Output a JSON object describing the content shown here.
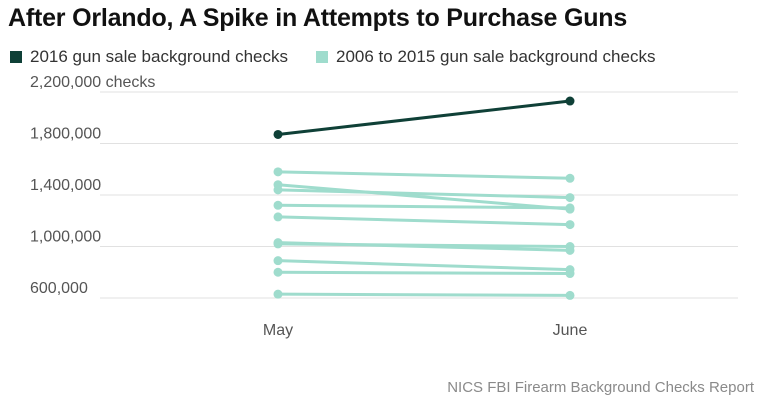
{
  "title": "After Orlando, A Spike in Attempts to Purchase Guns",
  "source": "NICS FBI Firearm Background Checks Report",
  "colors": {
    "highlight": "#0f4037",
    "context": "#9fdccd",
    "grid": "#e1e1e1",
    "text": "#555555"
  },
  "chart_data": {
    "type": "line",
    "categories": [
      "May",
      "June"
    ],
    "ylim": [
      600000,
      2200000
    ],
    "yticks": [
      600000,
      1000000,
      1400000,
      1800000,
      2200000
    ],
    "ytick_labels": [
      "600,000",
      "1,000,000",
      "1,400,000",
      "1,800,000",
      "2,200,000 checks"
    ],
    "grid": true,
    "legend_position": "top-left",
    "legend": [
      {
        "label": "2016 gun sale background checks",
        "color": "#0f4037"
      },
      {
        "label": "2006 to 2015 gun sale background checks",
        "color": "#9fdccd"
      }
    ],
    "series": [
      {
        "group": "2016",
        "values": [
          1870000,
          2130000
        ]
      },
      {
        "group": "2006-2015",
        "values": [
          1580000,
          1530000
        ]
      },
      {
        "group": "2006-2015",
        "values": [
          1480000,
          1290000
        ]
      },
      {
        "group": "2006-2015",
        "values": [
          1440000,
          1380000
        ]
      },
      {
        "group": "2006-2015",
        "values": [
          1320000,
          1300000
        ]
      },
      {
        "group": "2006-2015",
        "values": [
          1230000,
          1170000
        ]
      },
      {
        "group": "2006-2015",
        "values": [
          1030000,
          970000
        ]
      },
      {
        "group": "2006-2015",
        "values": [
          1020000,
          1000000
        ]
      },
      {
        "group": "2006-2015",
        "values": [
          890000,
          820000
        ]
      },
      {
        "group": "2006-2015",
        "values": [
          800000,
          790000
        ]
      },
      {
        "group": "2006-2015",
        "values": [
          630000,
          620000
        ]
      }
    ]
  }
}
